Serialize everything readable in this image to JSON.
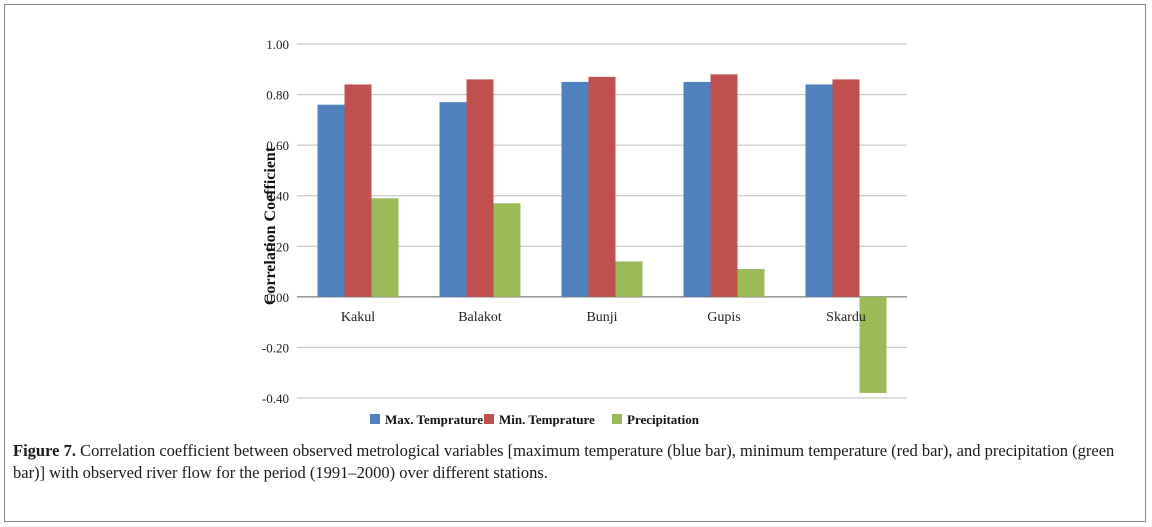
{
  "caption": {
    "label": "Figure 7.",
    "text": " Correlation coefficient between observed metrological variables [maximum temperature (blue bar), minimum temperature (red bar), and precipitation (green bar)] with observed river flow for the period (1991–2000) over different stations."
  },
  "chart_data": {
    "type": "bar",
    "title": "",
    "xlabel": "",
    "ylabel": "Correlation Coefficient",
    "categories": [
      "Kakul",
      "Balakot",
      "Bunji",
      "Gupis",
      "Skardu"
    ],
    "series": [
      {
        "name": "Max. Temprature",
        "color": "#4f81bd",
        "values": [
          0.76,
          0.77,
          0.85,
          0.85,
          0.84
        ]
      },
      {
        "name": "Min. Temprature",
        "color": "#c0504d",
        "values": [
          0.84,
          0.86,
          0.87,
          0.88,
          0.86
        ]
      },
      {
        "name": "Precipitation",
        "color": "#9bbb59",
        "values": [
          0.39,
          0.37,
          0.14,
          0.11,
          -0.38
        ]
      }
    ],
    "ylim": [
      -0.4,
      1.0
    ],
    "yticks": [
      1.0,
      0.8,
      0.6,
      0.4,
      0.2,
      0.0,
      -0.2,
      -0.4
    ],
    "ytick_labels": [
      "1.00",
      "0.80",
      "0.60",
      "0.40",
      "0.20",
      "0.00",
      "-0.20",
      "-0.40"
    ],
    "grid": true,
    "legend_position": "bottom"
  }
}
